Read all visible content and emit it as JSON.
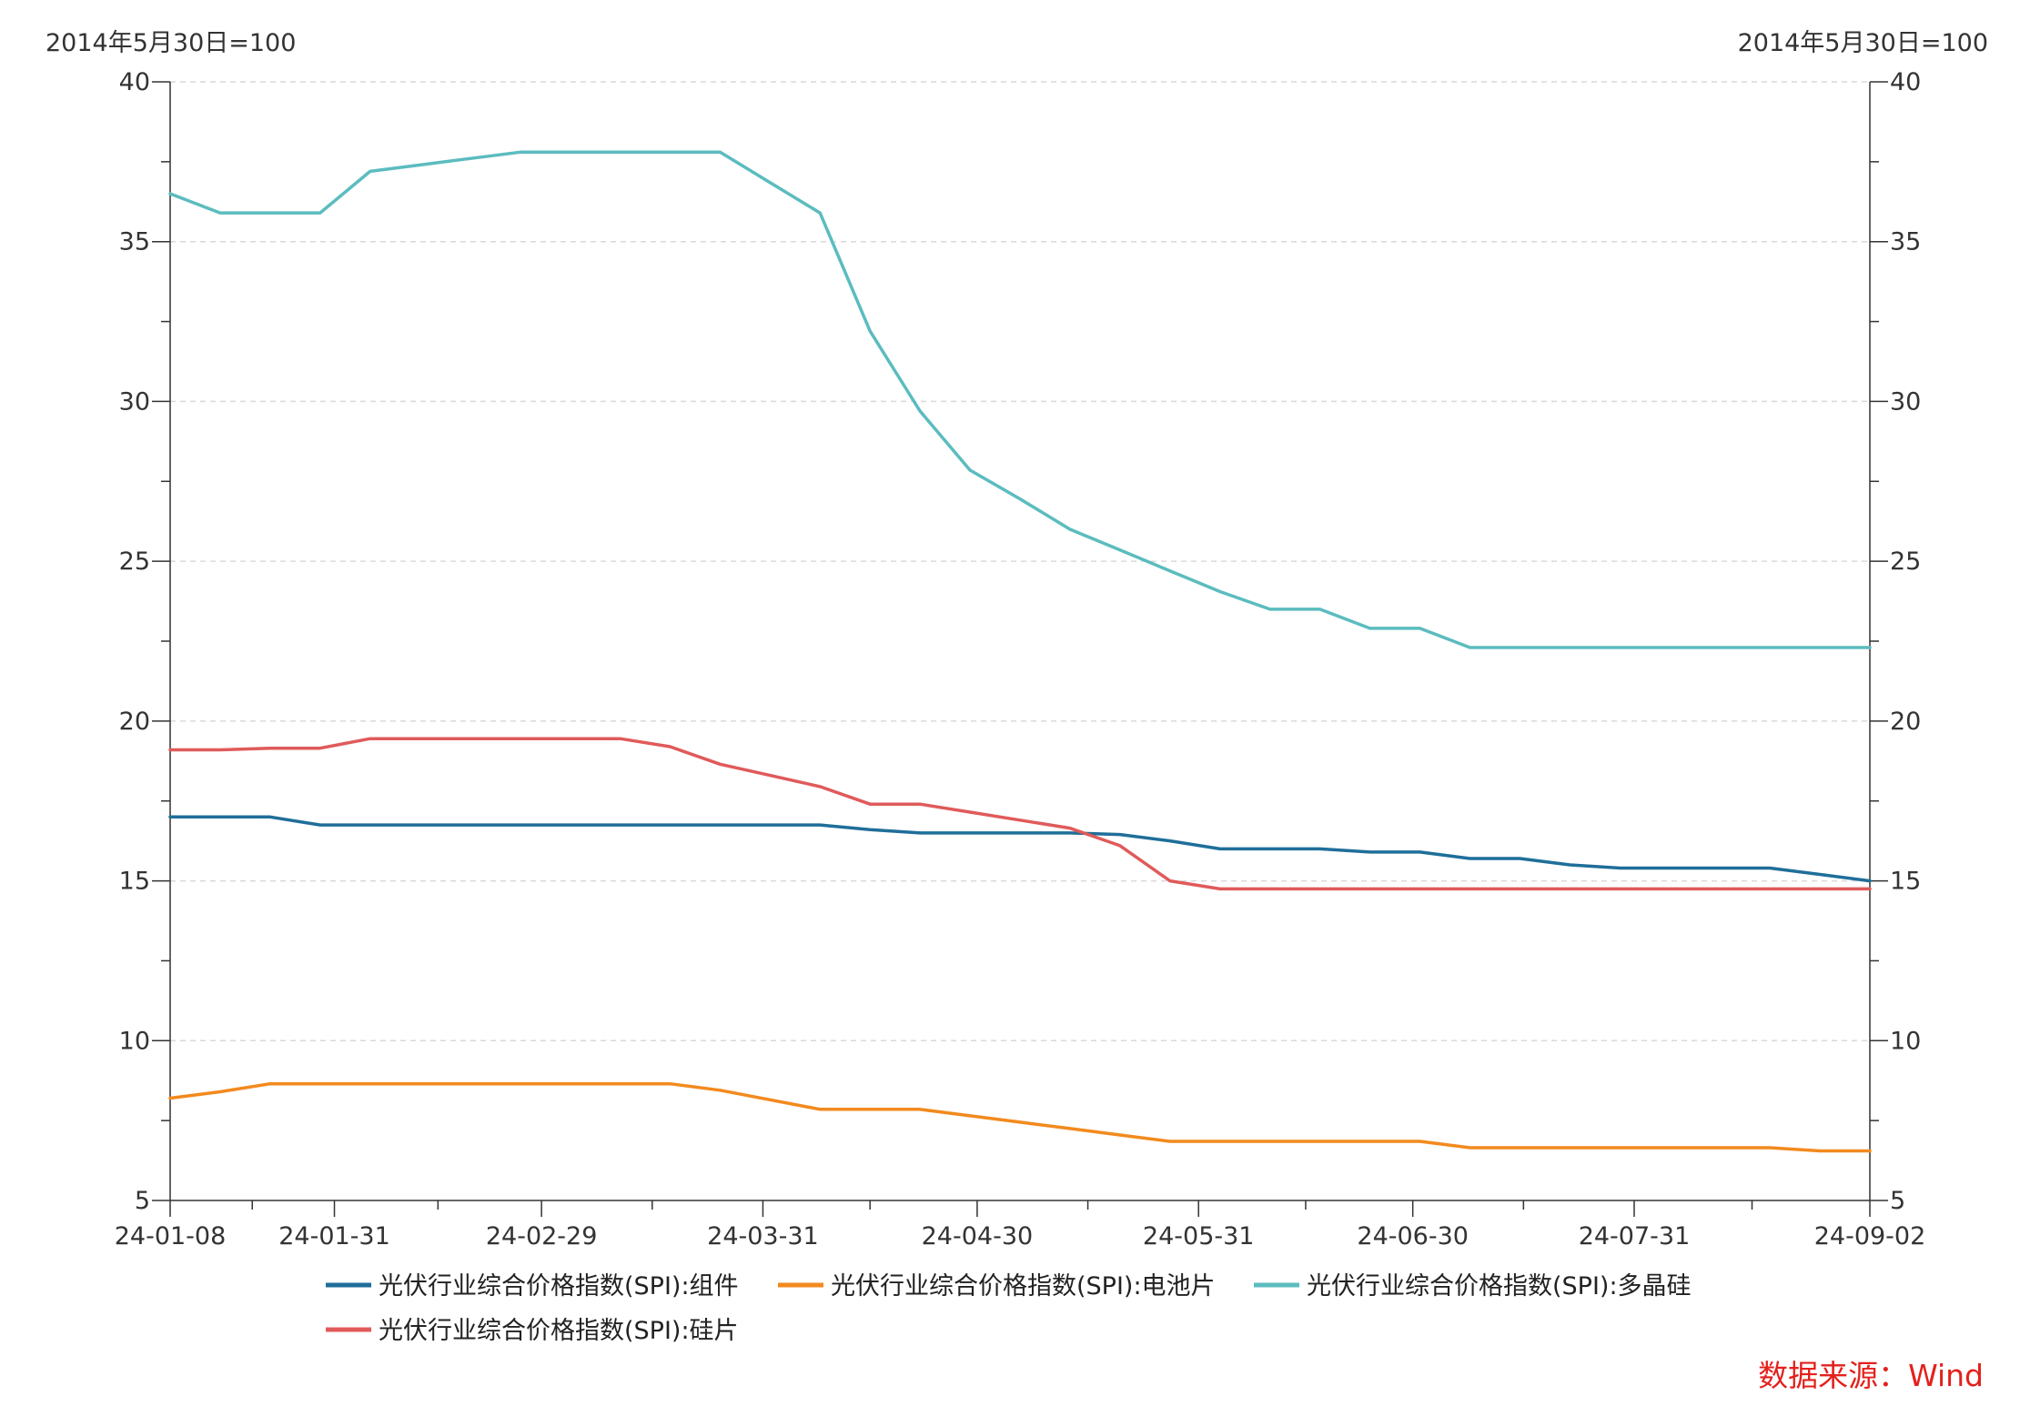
{
  "chart_data": {
    "type": "line",
    "left_axis_unit": "2014年5月30日=100",
    "right_axis_unit": "2014年5月30日=100",
    "ylim": [
      5,
      40
    ],
    "yticks": [
      5,
      10,
      15,
      20,
      25,
      30,
      35,
      40
    ],
    "xlim": [
      "2024-01-08",
      "2024-09-02"
    ],
    "xticks": [
      {
        "date": "2024-01-08",
        "label": "24-01-08"
      },
      {
        "date": "2024-01-31",
        "label": "24-01-31"
      },
      {
        "date": "2024-02-29",
        "label": "24-02-29"
      },
      {
        "date": "2024-03-31",
        "label": "24-03-31"
      },
      {
        "date": "2024-04-30",
        "label": "24-04-30"
      },
      {
        "date": "2024-05-31",
        "label": "24-05-31"
      },
      {
        "date": "2024-06-30",
        "label": "24-06-30"
      },
      {
        "date": "2024-07-31",
        "label": "24-07-31"
      },
      {
        "date": "2024-09-02",
        "label": "24-09-02"
      }
    ],
    "grid": true,
    "legend_position": "bottom",
    "x": [
      "2024-01-08",
      "2024-01-15",
      "2024-01-22",
      "2024-01-29",
      "2024-02-05",
      "2024-02-12",
      "2024-02-19",
      "2024-02-26",
      "2024-03-04",
      "2024-03-11",
      "2024-03-18",
      "2024-03-25",
      "2024-04-01",
      "2024-04-08",
      "2024-04-15",
      "2024-04-22",
      "2024-04-29",
      "2024-05-06",
      "2024-05-13",
      "2024-05-20",
      "2024-05-27",
      "2024-06-03",
      "2024-06-10",
      "2024-06-17",
      "2024-06-24",
      "2024-07-01",
      "2024-07-08",
      "2024-07-15",
      "2024-07-22",
      "2024-07-29",
      "2024-08-05",
      "2024-08-12",
      "2024-08-19",
      "2024-08-26",
      "2024-09-02"
    ],
    "series": [
      {
        "name": "光伏行业综合价格指数(SPI):组件",
        "color": "#1f6e9a",
        "values": [
          17.0,
          17.0,
          17.0,
          16.75,
          16.75,
          16.75,
          16.75,
          16.75,
          16.75,
          16.75,
          16.75,
          16.75,
          16.75,
          16.75,
          16.6,
          16.5,
          16.5,
          16.5,
          16.5,
          16.45,
          16.25,
          16.0,
          16.0,
          16.0,
          15.9,
          15.9,
          15.7,
          15.7,
          15.5,
          15.4,
          15.4,
          15.4,
          15.4,
          15.2,
          15.0
        ]
      },
      {
        "name": "光伏行业综合价格指数(SPI):电池片",
        "color": "#f28a1e",
        "values": [
          8.2,
          8.4,
          8.65,
          8.65,
          8.65,
          8.65,
          8.65,
          8.65,
          8.65,
          8.65,
          8.65,
          8.45,
          8.15,
          7.85,
          7.85,
          7.85,
          7.65,
          7.45,
          7.25,
          7.05,
          6.85,
          6.85,
          6.85,
          6.85,
          6.85,
          6.85,
          6.65,
          6.65,
          6.65,
          6.65,
          6.65,
          6.65,
          6.65,
          6.55,
          6.55
        ]
      },
      {
        "name": "光伏行业综合价格指数(SPI):多晶硅",
        "color": "#5bbcbf",
        "values": [
          36.5,
          35.9,
          35.9,
          35.9,
          37.2,
          37.4,
          37.6,
          37.8,
          37.8,
          37.8,
          37.8,
          37.8,
          36.85,
          35.9,
          32.2,
          29.7,
          27.85,
          26.95,
          26.0,
          25.35,
          24.7,
          24.05,
          23.5,
          23.5,
          22.9,
          22.9,
          22.3,
          22.3,
          22.3,
          22.3,
          22.3,
          22.3,
          22.3,
          22.3,
          22.3
        ]
      },
      {
        "name": "光伏行业综合价格指数(SPI):硅片",
        "color": "#e05a5a",
        "values": [
          19.1,
          19.1,
          19.15,
          19.15,
          19.45,
          19.45,
          19.45,
          19.45,
          19.45,
          19.45,
          19.2,
          18.65,
          18.3,
          17.95,
          17.4,
          17.4,
          17.15,
          16.9,
          16.65,
          16.1,
          15.0,
          14.75,
          14.75,
          14.75,
          14.75,
          14.75,
          14.75,
          14.75,
          14.75,
          14.75,
          14.75,
          14.75,
          14.75,
          14.75,
          14.75
        ]
      }
    ]
  },
  "source_note": "数据来源：Wind"
}
